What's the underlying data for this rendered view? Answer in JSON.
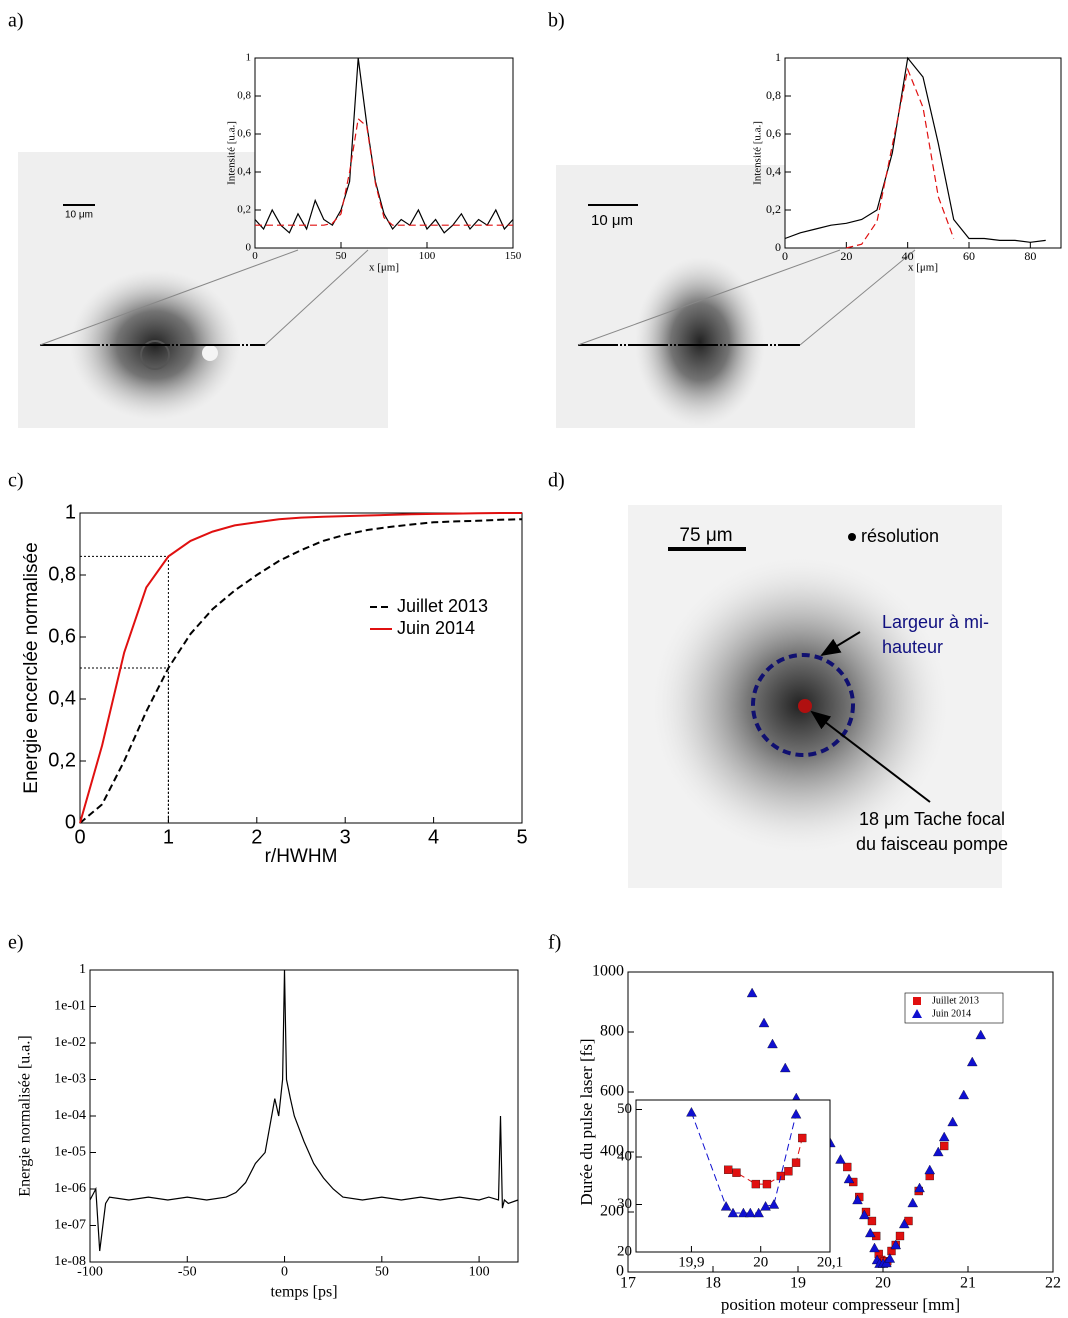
{
  "chart_data": [
    {
      "label": "a)",
      "type": "line",
      "scale_bar": "10 μm",
      "xlabel": "x [μm]",
      "ylabel": "Intensité [u.a.]",
      "xlim": [
        0,
        150
      ],
      "ylim": [
        0,
        1
      ],
      "xticks": [
        0,
        50,
        100,
        150
      ],
      "yticks": [
        0,
        {
          "value": 0.2,
          "label": "0,2"
        },
        {
          "value": 0.4,
          "label": "0,4"
        },
        {
          "value": 0.6,
          "label": "0,6"
        },
        {
          "value": 0.8,
          "label": "0,8"
        },
        1
      ],
      "series": [
        {
          "color": "#000000",
          "dash": "solid",
          "x": [
            0,
            5,
            10,
            15,
            20,
            25,
            30,
            35,
            40,
            45,
            50,
            55,
            60,
            65,
            70,
            75,
            80,
            85,
            90,
            95,
            100,
            105,
            110,
            115,
            120,
            125,
            130,
            135,
            140,
            145,
            150
          ],
          "values": [
            0.15,
            0.1,
            0.2,
            0.12,
            0.08,
            0.18,
            0.1,
            0.25,
            0.15,
            0.12,
            0.2,
            0.35,
            1.0,
            0.65,
            0.35,
            0.18,
            0.1,
            0.15,
            0.12,
            0.2,
            0.1,
            0.15,
            0.08,
            0.12,
            0.18,
            0.1,
            0.15,
            0.12,
            0.2,
            0.1,
            0.15
          ]
        },
        {
          "color": "#e01010",
          "dash": "dashed",
          "x": [
            0,
            5,
            10,
            15,
            20,
            25,
            30,
            35,
            40,
            45,
            50,
            55,
            60,
            65,
            70,
            75,
            80,
            85,
            90,
            95,
            100,
            105,
            110,
            115,
            120,
            125,
            130,
            135,
            140,
            145,
            150
          ],
          "values": [
            0.12,
            0.12,
            0.12,
            0.12,
            0.12,
            0.12,
            0.12,
            0.12,
            0.12,
            0.13,
            0.18,
            0.4,
            0.68,
            0.64,
            0.34,
            0.16,
            0.12,
            0.12,
            0.12,
            0.12,
            0.12,
            0.12,
            0.12,
            0.12,
            0.12,
            0.12,
            0.12,
            0.12,
            0.12,
            0.12,
            0.12
          ]
        }
      ]
    },
    {
      "label": "b)",
      "type": "line",
      "scale_bar": "10 μm",
      "xlabel": "x [μm]",
      "ylabel": "Intensité [u.a.]",
      "xlim": [
        0,
        90
      ],
      "ylim": [
        0,
        1
      ],
      "xticks": [
        0,
        20,
        40,
        60,
        80
      ],
      "yticks": [
        0,
        {
          "value": 0.2,
          "label": "0,2"
        },
        {
          "value": 0.4,
          "label": "0,4"
        },
        {
          "value": 0.6,
          "label": "0,6"
        },
        {
          "value": 0.8,
          "label": "0,8"
        },
        1
      ],
      "series": [
        {
          "color": "#000000",
          "dash": "solid",
          "x": [
            0,
            5,
            10,
            15,
            20,
            25,
            30,
            35,
            40,
            45,
            50,
            55,
            60,
            65,
            70,
            75,
            80,
            85
          ],
          "values": [
            0.05,
            0.08,
            0.1,
            0.12,
            0.13,
            0.15,
            0.2,
            0.5,
            1.0,
            0.9,
            0.55,
            0.15,
            0.05,
            0.05,
            0.04,
            0.04,
            0.03,
            0.04
          ]
        },
        {
          "color": "#e01010",
          "dash": "dashed",
          "x": [
            20,
            25,
            30,
            35,
            40,
            45,
            50,
            55
          ],
          "values": [
            0,
            0.02,
            0.14,
            0.54,
            0.94,
            0.74,
            0.27,
            0.05
          ]
        }
      ]
    },
    {
      "label": "c)",
      "type": "line",
      "xlabel": "r/HWHM",
      "ylabel": "Energie encerclée normalisée",
      "xlim": [
        0,
        5
      ],
      "ylim": [
        0,
        1
      ],
      "xticks": [
        0,
        1,
        2,
        3,
        4,
        5
      ],
      "yticks": [
        0,
        {
          "value": 0.2,
          "label": "0,2"
        },
        {
          "value": 0.4,
          "label": "0,4"
        },
        {
          "value": 0.6,
          "label": "0,6"
        },
        {
          "value": 0.8,
          "label": "0,8"
        },
        1
      ],
      "legend": "center right",
      "guides": [
        {
          "x": 1,
          "y": 0.86
        },
        {
          "x": 1,
          "y": 0.5
        }
      ],
      "x": [
        0,
        0.25,
        0.5,
        0.75,
        1,
        1.25,
        1.5,
        1.75,
        2,
        2.25,
        2.5,
        2.75,
        3,
        3.25,
        3.5,
        3.75,
        4,
        4.25,
        4.5,
        4.75,
        5
      ],
      "series": [
        {
          "name": "Juillet 2013",
          "color": "#000000",
          "dash": "dashed",
          "values": [
            0,
            0.06,
            0.2,
            0.36,
            0.5,
            0.61,
            0.69,
            0.75,
            0.8,
            0.845,
            0.88,
            0.91,
            0.93,
            0.945,
            0.955,
            0.963,
            0.97,
            0.973,
            0.975,
            0.978,
            0.98
          ]
        },
        {
          "name": "Juin 2014",
          "color": "#e01010",
          "dash": "solid",
          "values": [
            0,
            0.25,
            0.55,
            0.76,
            0.86,
            0.91,
            0.94,
            0.96,
            0.97,
            0.98,
            0.985,
            0.988,
            0.99,
            0.992,
            0.994,
            0.996,
            0.997,
            0.998,
            0.999,
            1,
            1
          ]
        }
      ]
    },
    {
      "label": "d)",
      "type": "image",
      "scale_bar": "75 μm",
      "resolution": "résolution",
      "annotations": [
        {
          "lines": [
            "Largeur à mi-",
            "hauteur"
          ]
        },
        {
          "lines": [
            "18 μm Tache focal",
            "du faisceau pompe"
          ]
        }
      ]
    },
    {
      "label": "e)",
      "type": "line",
      "xlabel": "temps [ps]",
      "ylabel": "Energie normalisée [u.a.]",
      "log_y": true,
      "xlim": [
        -100,
        120
      ],
      "ylim": [
        1e-08,
        1
      ],
      "xticks": [
        -100,
        -50,
        0,
        50,
        100
      ],
      "yticks": [
        {
          "value": 1e-08,
          "label": "1e-08"
        },
        {
          "value": 1e-07,
          "label": "1e-07"
        },
        {
          "value": 1e-06,
          "label": "1e-06"
        },
        {
          "value": 1e-05,
          "label": "1e-05"
        },
        {
          "value": 0.0001,
          "label": "1e-04"
        },
        {
          "value": 0.001,
          "label": "1e-03"
        },
        {
          "value": 0.01,
          "label": "1e-02"
        },
        {
          "value": 0.1,
          "label": "1e-01"
        },
        1
      ],
      "x": [
        -100,
        -97,
        -95,
        -92,
        -90,
        -80,
        -70,
        -60,
        -50,
        -40,
        -30,
        -25,
        -20,
        -15,
        -10,
        -5,
        -3,
        -1,
        0,
        1,
        3,
        5,
        10,
        15,
        20,
        25,
        30,
        40,
        50,
        60,
        70,
        80,
        90,
        100,
        105,
        110,
        111,
        112,
        113,
        115,
        120
      ],
      "series": [
        {
          "color": "#000000",
          "dash": "solid",
          "values": [
            5e-07,
            1e-06,
            2e-08,
            4e-07,
            6e-07,
            5e-07,
            6e-07,
            5e-07,
            6e-07,
            5e-07,
            6e-07,
            8e-07,
            1.5e-06,
            5e-06,
            1e-05,
            0.0003,
            0.0001,
            0.001,
            1,
            0.001,
            0.0003,
            0.0001,
            2e-05,
            5e-06,
            2e-06,
            1e-06,
            6e-07,
            5e-07,
            6e-07,
            5e-07,
            6e-07,
            5e-07,
            6e-07,
            5e-07,
            6e-07,
            5e-07,
            0.0001,
            3e-07,
            5e-07,
            4e-07,
            5e-07
          ]
        }
      ]
    },
    {
      "label": "f)",
      "type": "scatter",
      "xlabel": "position moteur compresseur [mm]",
      "ylabel": "Durée du pulse laser [fs]",
      "xlim": [
        17,
        22
      ],
      "ylim": [
        0,
        1000
      ],
      "xticks": [
        17,
        18,
        19,
        20,
        21,
        22
      ],
      "yticks": [
        0,
        200,
        400,
        600,
        800,
        1000
      ],
      "legend": "upper right",
      "series": [
        {
          "name": "Juillet 2013",
          "color": "#e01010",
          "marker": "square",
          "x": [
            19.58,
            19.65,
            19.72,
            19.8,
            19.87,
            19.92,
            19.95,
            19.98,
            20.02,
            20.05,
            20.1,
            20.15,
            20.2,
            20.3,
            20.42,
            20.55,
            20.72
          ],
          "values": [
            350,
            300,
            250,
            200,
            170,
            120,
            60,
            40,
            35,
            36,
            70,
            90,
            120,
            170,
            270,
            320,
            420
          ]
        },
        {
          "name": "Juin 2014",
          "color": "#1010d0",
          "marker": "triangle",
          "x": [
            18.46,
            18.6,
            18.7,
            18.85,
            18.98,
            19.38,
            19.5,
            19.6,
            19.7,
            19.78,
            19.85,
            19.9,
            19.93,
            19.96,
            20.0,
            20.04,
            20.08,
            20.15,
            20.25,
            20.35,
            20.43,
            20.55,
            20.65,
            20.72,
            20.82,
            20.95,
            21.05,
            21.15
          ],
          "values": [
            930,
            830,
            760,
            680,
            580,
            430,
            375,
            310,
            240,
            190,
            130,
            80,
            40,
            28,
            28,
            30,
            45,
            90,
            160,
            230,
            280,
            340,
            400,
            450,
            500,
            590,
            700,
            790
          ]
        }
      ],
      "inset": {
        "xlim": [
          19.82,
          20.1
        ],
        "ylim": [
          20,
          52
        ],
        "xticks": [
          {
            "value": 19.9,
            "label": "19,9"
          },
          20,
          {
            "value": 20.1,
            "label": "20,1"
          }
        ],
        "yticks": [
          20,
          30,
          40,
          50
        ],
        "series": [
          {
            "color": "#e01010",
            "marker": "square",
            "dash": "dashed",
            "x": [
              19.953,
              19.965,
              19.993,
              20.009,
              20.029,
              20.04,
              20.051,
              20.06
            ],
            "values": [
              37.3,
              36.7,
              34.3,
              34.3,
              36,
              37,
              38.8,
              44
            ]
          },
          {
            "color": "#1010d0",
            "marker": "triangle",
            "dash": "dashed",
            "x": [
              19.9,
              19.95,
              19.96,
              19.975,
              19.985,
              19.997,
              20.007,
              20.019,
              20.051
            ],
            "values": [
              49.4,
              29.6,
              28.2,
              28.2,
              28.2,
              28.2,
              29.6,
              30,
              49
            ]
          }
        ]
      }
    }
  ]
}
